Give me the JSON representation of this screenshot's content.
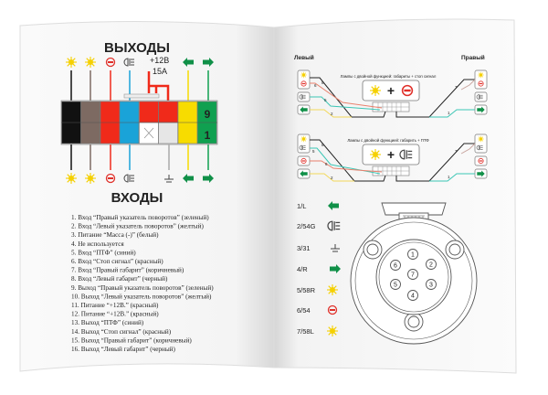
{
  "left_page": {
    "outputs_title": "ВЫХОДЫ",
    "inputs_title": "ВХОДЫ",
    "power_label": "+12В",
    "fuse_label": "15А",
    "pin_top_label": "9",
    "pin_bottom_label": "1",
    "wire_colors": [
      "#111111",
      "#7d6a62",
      "#f02a1a",
      "#1aa3d8",
      "#f02a1a",
      "#f02a1a",
      "#f7dc00",
      "#10a050"
    ],
    "list": [
      "1.  Вход “Правый указатель поворотов” (зеленый)",
      "2.  Вход “Левый указатель поворотов” (желтый)",
      "3.  Питание “Масса (-)” (белый)",
      "4.  Не используется",
      "5.  Вход “ПТФ” (синий)",
      "6.  Вход “Стоп сигнал” (красный)",
      "7.  Вход “Правый габарит” (коричневый)",
      "8.  Вход “Левый габарит” (черный)",
      "9.  Выход “Правый указатель поворотов” (зеленый)",
      "10. Выход “Левый указатель поворотов” (желтый)",
      "11. Питание “+12В.” (красный)",
      "12. Питание “+12В.” (красный)",
      "13. Выход “ПТФ” (синий)",
      "14. Выход “Стоп сигнал” (красный)",
      "15. Выход “Правый габарит” (коричневый)",
      "16. Выход “Левый габарит” (черный)"
    ]
  },
  "right_page": {
    "left_label": "Левый",
    "right_label": "Правый",
    "diagram1_caption": "Лампы с двойной функцией: габариты + стоп сигнал",
    "diagram2_caption": "Лампы с двойной функцией: габарить + ПТФ",
    "wire_numbers": {
      "a": "8",
      "b": "6",
      "c": "5",
      "d": "2",
      "e": "7",
      "f": "1"
    },
    "legend": [
      {
        "label": "1/L",
        "icon": "arrow-left-icon"
      },
      {
        "label": "2/54G",
        "icon": "fog-light-icon"
      },
      {
        "label": "3/31",
        "icon": "ground-icon"
      },
      {
        "label": "4/R",
        "icon": "arrow-right-icon"
      },
      {
        "label": "5/58R",
        "icon": "sun-icon"
      },
      {
        "label": "6/54",
        "icon": "stop-icon"
      },
      {
        "label": "7/58L",
        "icon": "sun-icon"
      }
    ],
    "socket_pins": [
      "1",
      "2",
      "3",
      "4",
      "5",
      "6",
      "7"
    ]
  },
  "colors": {
    "green": "#10a050",
    "yellow": "#f7dc00",
    "red": "#e0302a",
    "blue": "#1aa3d8"
  }
}
